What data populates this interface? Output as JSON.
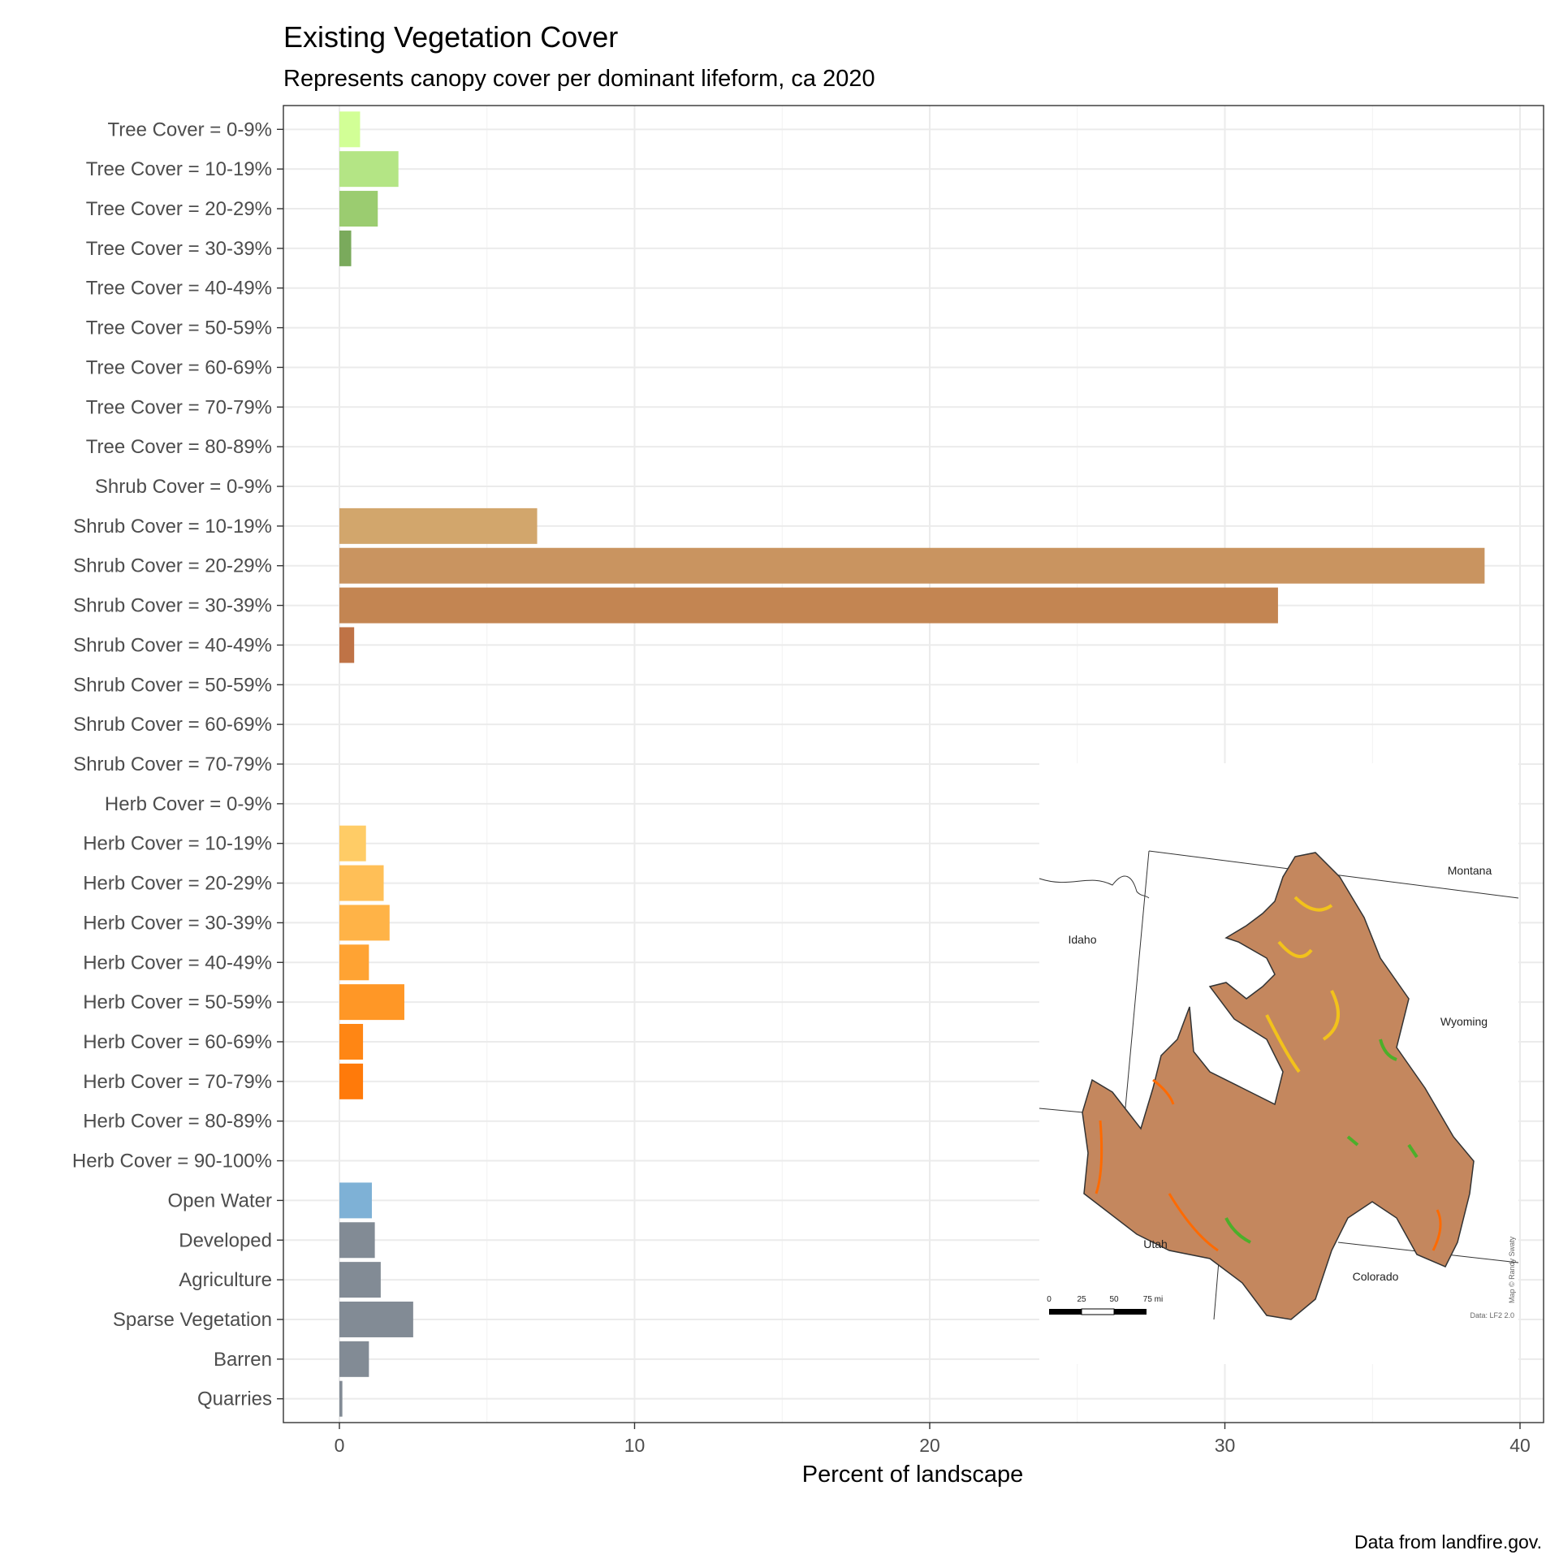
{
  "title": "Existing Vegetation Cover",
  "subtitle": "Represents canopy cover per dominant lifeform, ca 2020",
  "caption": "Data from landfire.gov.",
  "chart_data": {
    "type": "bar",
    "orientation": "horizontal",
    "xlabel": "Percent of landscape",
    "ylabel": "",
    "xlim": [
      -1.9,
      40.8
    ],
    "xticks": [
      "0",
      "10",
      "20",
      "30",
      "40"
    ],
    "grid": true,
    "categories": [
      "Tree Cover = 0-9%",
      "Tree Cover = 10-19%",
      "Tree Cover = 20-29%",
      "Tree Cover = 30-39%",
      "Tree Cover = 40-49%",
      "Tree Cover = 50-59%",
      "Tree Cover = 60-69%",
      "Tree Cover = 70-79%",
      "Tree Cover = 80-89%",
      "Shrub Cover = 0-9%",
      "Shrub Cover = 10-19%",
      "Shrub Cover = 20-29%",
      "Shrub Cover = 30-39%",
      "Shrub Cover = 40-49%",
      "Shrub Cover = 50-59%",
      "Shrub Cover = 60-69%",
      "Shrub Cover = 70-79%",
      "Herb Cover = 0-9%",
      "Herb Cover = 10-19%",
      "Herb Cover = 20-29%",
      "Herb Cover = 30-39%",
      "Herb Cover = 40-49%",
      "Herb Cover = 50-59%",
      "Herb Cover = 60-69%",
      "Herb Cover = 70-79%",
      "Herb Cover = 80-89%",
      "Herb Cover = 90-100%",
      "Open Water",
      "Developed",
      "Agriculture",
      "Sparse Vegetation",
      "Barren",
      "Quarries"
    ],
    "values": [
      0.7,
      2.0,
      1.3,
      0.4,
      0,
      0,
      0,
      0,
      0,
      0,
      6.7,
      38.8,
      31.8,
      0.5,
      0,
      0,
      0,
      0,
      0.9,
      1.5,
      1.7,
      1.0,
      2.2,
      0.8,
      0.8,
      0,
      0,
      1.1,
      1.2,
      1.4,
      2.5,
      1.0,
      0.1
    ],
    "colors": [
      "#d2ff96",
      "#b4e585",
      "#9bcc70",
      "#7aaa5c",
      "#ffffff",
      "#ffffff",
      "#ffffff",
      "#ffffff",
      "#ffffff",
      "#ffffff",
      "#d2a66c",
      "#c99460",
      "#c38552",
      "#bf7346",
      "#ffffff",
      "#ffffff",
      "#ffffff",
      "#ffffff",
      "#ffcc66",
      "#ffbf57",
      "#ffb347",
      "#ffa333",
      "#ff9726",
      "#ff8614",
      "#ff7a0a",
      "#ffffff",
      "#ffffff",
      "#7eb1d6",
      "#828b95",
      "#828b95",
      "#828b95",
      "#828b95",
      "#828b95"
    ]
  },
  "inset_map": {
    "labels": [
      "Montana",
      "Idaho",
      "Wyoming",
      "Utah",
      "Colorado"
    ],
    "scale_ticks": [
      "0",
      "25",
      "50",
      "75 mi"
    ],
    "credit": "Map © Randy Swaty",
    "data_note": "Data: LF2 2.0",
    "fill_color": "#c4875e"
  }
}
